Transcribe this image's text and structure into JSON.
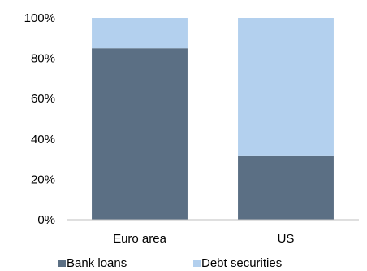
{
  "chart_data": {
    "type": "bar",
    "stacked": true,
    "categories": [
      "Euro area",
      "US"
    ],
    "series": [
      {
        "name": "Bank loans",
        "values": [
          85,
          31.5
        ],
        "color": "#5b6f84"
      },
      {
        "name": "Debt securities",
        "values": [
          15,
          68.5
        ],
        "color": "#b3d0ee"
      }
    ],
    "ylim": [
      0,
      100
    ],
    "yticks": [
      "0%",
      "20%",
      "40%",
      "60%",
      "80%",
      "100%"
    ],
    "grid": false,
    "legend": "bottom"
  }
}
